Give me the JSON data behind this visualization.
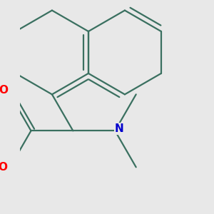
{
  "background_color": "#e8e8e8",
  "bond_color": "#3a7060",
  "bond_width": 1.6,
  "atom_colors": {
    "O": "#ff0000",
    "N": "#0000cc"
  },
  "font_size_atom": 10,
  "figsize": [
    3.0,
    3.0
  ],
  "dpi": 100,
  "xlim": [
    -0.5,
    3.8
  ],
  "ylim": [
    -2.8,
    2.2
  ]
}
